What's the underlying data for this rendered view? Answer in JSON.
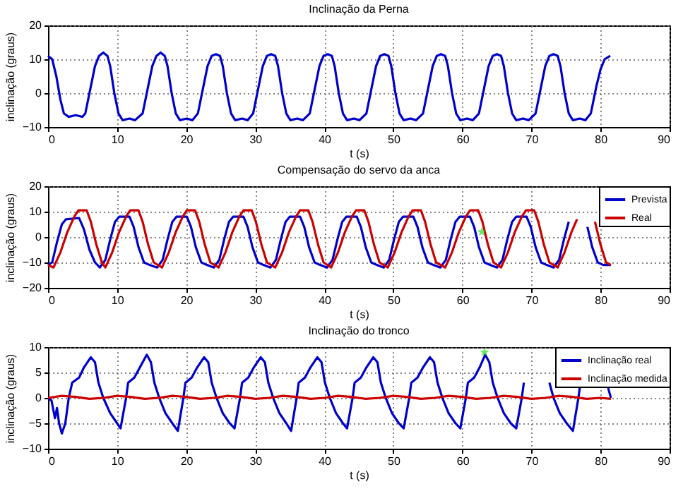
{
  "chart_data": [
    {
      "type": "line",
      "title": "Inclinação da Perna",
      "xlabel": "t (s)",
      "ylabel": "inclinação (graus)",
      "xlim": [
        0,
        90
      ],
      "ylim": [
        -10,
        20
      ],
      "xticks": [
        0,
        10,
        20,
        30,
        40,
        50,
        60,
        70,
        80,
        90
      ],
      "yticks": [
        -10,
        0,
        10,
        20
      ],
      "grid": true,
      "x": [
        0,
        0.6,
        1.2,
        1.8,
        2.3,
        3,
        4,
        5,
        5.4,
        6.2,
        6.8,
        7.4,
        8,
        8.6,
        9,
        9.6,
        10.2,
        10.8,
        11.8,
        12.6,
        13.7,
        14.5,
        15.1,
        15.7,
        16.3,
        16.9,
        17.3,
        17.9,
        18.5,
        19.1,
        20.1,
        20.9,
        21.7,
        22.5,
        23.1,
        23.7,
        24.3,
        24.9,
        25.3,
        25.9,
        26.5,
        27.1,
        28.1,
        28.9,
        29.7,
        30.5,
        31.1,
        31.7,
        32.3,
        32.9,
        33.3,
        33.9,
        34.5,
        35.1,
        36.1,
        36.9,
        37.9,
        38.7,
        39.3,
        39.9,
        40.5,
        41.1,
        41.5,
        42.1,
        42.7,
        43.3,
        44.3,
        45.1,
        46.1,
        46.9,
        47.5,
        48.1,
        48.7,
        49.3,
        49.7,
        50.3,
        50.9,
        51.5,
        52.5,
        53.3,
        54.3,
        55.1,
        55.7,
        56.3,
        56.9,
        57.5,
        57.9,
        58.5,
        59.1,
        59.7,
        60.7,
        61.5,
        62.4,
        63.2,
        63.8,
        64.4,
        65,
        65.6,
        66,
        66.6,
        67.2,
        67.8,
        68.8,
        69.6,
        70.6,
        71.4,
        72,
        72.6,
        73.2,
        73.8,
        74.2,
        74.8,
        75.4,
        76,
        77,
        77.8,
        78.6,
        79.4,
        80,
        80.6,
        81.4
      ],
      "series": [
        {
          "color": "#0000cc",
          "values": [
            11,
            10,
            5,
            -2,
            -6,
            -7,
            -6.5,
            -7,
            -6,
            2,
            8,
            11,
            12,
            11,
            8,
            0,
            -6,
            -8,
            -7.5,
            -8,
            -6,
            2,
            8,
            11,
            12,
            11,
            8,
            0,
            -6,
            -8,
            -7.5,
            -8,
            -6,
            2,
            8,
            11,
            11.5,
            11,
            8,
            0,
            -6,
            -8,
            -7.5,
            -8,
            -6,
            2,
            8,
            11,
            11.5,
            11,
            8,
            0,
            -6,
            -8,
            -7.5,
            -8,
            -6,
            2,
            8,
            11,
            11.5,
            11,
            8,
            0,
            -6,
            -8,
            -7.5,
            -8,
            -6,
            2,
            8,
            11,
            11.5,
            11,
            8,
            0,
            -6,
            -8,
            -7.5,
            -8,
            -6,
            2,
            8,
            11,
            11.5,
            11,
            8,
            0,
            -6,
            -8,
            -7.5,
            -8,
            -6,
            2,
            8,
            11,
            11.5,
            11,
            8,
            0,
            -6,
            -8,
            -7.5,
            -8,
            -6,
            2,
            8,
            11,
            11.5,
            11,
            8,
            0,
            -6,
            -8,
            -7.5,
            -8,
            -6,
            2,
            7,
            10,
            11
          ]
        }
      ]
    },
    {
      "type": "line",
      "title": "Compensação do servo da anca",
      "xlabel": "t (s)",
      "ylabel": "inclinação (graus)",
      "xlim": [
        0,
        90
      ],
      "ylim": [
        -20,
        20
      ],
      "xticks": [
        0,
        10,
        20,
        30,
        40,
        50,
        60,
        70,
        80,
        90
      ],
      "yticks": [
        -20,
        -10,
        0,
        10,
        20
      ],
      "grid": true,
      "legend": "top right",
      "series": [
        {
          "name": "Prevista",
          "color": "#0000cc",
          "x": [
            0,
            0.6,
            1.3,
            2,
            2.6,
            4.5,
            5.2,
            6,
            6.8,
            7.5,
            8.3,
            9,
            9.7,
            10.3,
            11.8,
            12.4,
            13.1,
            13.9,
            14.7,
            15.8,
            16.6,
            17.3,
            18,
            18.6,
            20.1,
            20.7,
            21.4,
            22.2,
            23,
            24,
            24.8,
            25.5,
            26.2,
            26.8,
            28.3,
            28.9,
            29.6,
            30.4,
            31.2,
            32.2,
            33,
            33.7,
            34.4,
            35,
            36.5,
            37.1,
            37.8,
            38.6,
            39.4,
            40.4,
            41.2,
            41.9,
            42.6,
            43.2,
            44.7,
            45.3,
            46,
            46.8,
            47.6,
            48.6,
            49.4,
            50.1,
            50.8,
            51.4,
            52.9,
            53.5,
            54.2,
            55,
            55.8,
            56.8,
            57.6,
            58.3,
            59,
            59.6,
            61.1,
            61.7,
            62.4,
            63.2,
            64,
            65,
            65.8,
            66.5,
            67.2,
            67.8,
            69.3,
            69.9,
            70.6,
            71.4,
            72.2,
            73.2,
            74,
            74.7,
            75.4,
            75.9,
            78.1,
            78.8,
            79.6,
            80.4,
            81.5
          ],
          "values": [
            -11,
            -10,
            -2,
            5,
            7,
            7.5,
            3,
            -5,
            -10,
            -12,
            -9,
            -1,
            6,
            8,
            8,
            4,
            -4,
            -10,
            -11,
            -12,
            -9,
            -1,
            6,
            8,
            8,
            4,
            -4,
            -10,
            -11,
            -12,
            -9,
            -1,
            6,
            8,
            8,
            4,
            -4,
            -10,
            -11,
            -12,
            -9,
            -1,
            6,
            8,
            8,
            4,
            -4,
            -10,
            -11,
            -12,
            -9,
            -1,
            6,
            8,
            8,
            4,
            -4,
            -10,
            -11,
            -12,
            -9,
            -1,
            6,
            8,
            8,
            4,
            -4,
            -10,
            -11,
            -12,
            -9,
            -1,
            6,
            8,
            8,
            4,
            -4,
            -10,
            -11,
            -12,
            -9,
            -1,
            6,
            8,
            8,
            4,
            -4,
            -10,
            -11,
            -12,
            -9,
            -1,
            6,
            null,
            4,
            -4,
            -10,
            -11,
            -11
          ]
        },
        {
          "name": "Real",
          "color": "#cc0000",
          "x": [
            0,
            0.8,
            1.8,
            2.8,
            3.8,
            4.4,
            5.6,
            6.2,
            7,
            7.8,
            8.3,
            9.3,
            10.3,
            11.3,
            11.9,
            13.1,
            13.7,
            14.5,
            15.3,
            16.5,
            17.5,
            18.5,
            19.5,
            20.1,
            21.3,
            21.9,
            22.7,
            23.5,
            24.7,
            25.7,
            26.7,
            27.7,
            28.3,
            29.5,
            30.1,
            30.9,
            31.7,
            32.9,
            33.9,
            34.9,
            35.9,
            36.5,
            37.7,
            38.3,
            39.1,
            39.9,
            41,
            42,
            43,
            44,
            44.6,
            45.8,
            46.4,
            47.2,
            48,
            49.2,
            50.2,
            51.2,
            52.2,
            52.8,
            54,
            54.6,
            55.4,
            56.2,
            57.5,
            58.5,
            59.5,
            60.5,
            61.1,
            62.3,
            62.9,
            63.7,
            64.5,
            65.6,
            66.6,
            67.6,
            68.6,
            69.2,
            70.4,
            71,
            71.8,
            72.6,
            73.8,
            74.8,
            75.8,
            76.6,
            77.2,
            79.2,
            80,
            80.8,
            81.5
          ],
          "values": [
            -11,
            -12,
            -6,
            2,
            8,
            10.5,
            10.5,
            6,
            -3,
            -10,
            -12,
            -6,
            2,
            8,
            10.5,
            10.5,
            6,
            -3,
            -10,
            -12,
            -6,
            2,
            8,
            10.5,
            10.5,
            6,
            -3,
            -10,
            -12,
            -6,
            2,
            8,
            10.5,
            10.5,
            6,
            -3,
            -10,
            -12,
            -6,
            2,
            8,
            10.5,
            10.5,
            6,
            -3,
            -10,
            -12,
            -6,
            2,
            8,
            10.5,
            10.5,
            6,
            -3,
            -10,
            -12,
            -6,
            2,
            8,
            10.5,
            10.5,
            6,
            -3,
            -10,
            -12,
            -6,
            2,
            8,
            10.5,
            10.5,
            6,
            -3,
            -10,
            -12,
            -6,
            2,
            8,
            10.5,
            10.5,
            6,
            -3,
            -10,
            -12,
            -6,
            2,
            7,
            null,
            6,
            -3,
            -10,
            -11
          ]
        },
        {
          "type": "scatter",
          "color": "#22dd22",
          "marker": "star",
          "x": [
            62.8
          ],
          "values": [
            2
          ]
        }
      ]
    },
    {
      "type": "line",
      "title": "Inclinação do tronco",
      "xlabel": "t (s)",
      "ylabel": "inclinação (graus)",
      "xlim": [
        0,
        90
      ],
      "ylim": [
        -10,
        10
      ],
      "xticks": [
        0,
        10,
        20,
        30,
        40,
        50,
        60,
        70,
        80,
        90
      ],
      "yticks": [
        -10,
        -5,
        0,
        5,
        10
      ],
      "grid": true,
      "legend": "top right",
      "series": [
        {
          "name": "Inclinação real",
          "color": "#0000cc",
          "x": [
            0,
            0.5,
            1,
            1.3,
            1.6,
            2,
            2.5,
            3,
            3.5,
            4.5,
            5.2,
            6.2,
            6.8,
            7.3,
            8,
            9,
            10,
            10.5,
            11.3,
            11.6,
            12.5,
            13.3,
            14.3,
            14.9,
            15.4,
            16.1,
            17,
            18,
            18.8,
            19.6,
            19.9,
            20.8,
            21.6,
            22.6,
            23.2,
            23.7,
            24.4,
            25.3,
            26.3,
            27,
            27.8,
            28.1,
            29,
            29.8,
            30.8,
            31.4,
            31.9,
            32.6,
            33.5,
            34.5,
            35.2,
            36,
            36.3,
            37.2,
            38,
            39,
            39.6,
            40.1,
            40.8,
            41.7,
            42.7,
            43.3,
            44.1,
            44.4,
            45.3,
            46.1,
            47.1,
            47.7,
            48.2,
            48.9,
            49.8,
            50.8,
            51.5,
            52.3,
            52.6,
            53.5,
            54.3,
            55.3,
            55.9,
            56.4,
            57.1,
            58,
            59,
            59.7,
            60.5,
            60.8,
            61.7,
            62.5,
            63.3,
            63.9,
            64.4,
            65.1,
            66,
            67,
            67.8,
            68.6,
            68.9,
            69.5,
            72.6,
            73.2,
            74.1,
            75.1,
            76,
            76.8,
            77.1,
            77.6,
            81.1,
            81.5
          ],
          "values": [
            0,
            -0.5,
            -4,
            -2,
            -5,
            -7,
            -5,
            0,
            3,
            4,
            6,
            8,
            7,
            3,
            0,
            -3,
            -5,
            -6,
            0,
            3,
            4,
            6,
            8.5,
            7,
            3,
            0,
            -3,
            -5,
            -6.5,
            0,
            3,
            4,
            6,
            8,
            7,
            3,
            0,
            -3,
            -5,
            -6,
            0,
            3,
            4,
            6,
            8,
            7,
            3,
            0,
            -3,
            -5,
            -6.5,
            0,
            3,
            4,
            6,
            8,
            7,
            3,
            0,
            -3,
            -5,
            -6,
            0,
            3,
            4,
            6,
            8,
            7,
            3,
            0,
            -3,
            -5,
            -6,
            0,
            3,
            4,
            6,
            8,
            7,
            3,
            0,
            -3,
            -5,
            -6,
            0,
            3,
            4,
            6,
            8.5,
            7,
            3,
            0,
            -3,
            -5,
            -6,
            0,
            3,
            null,
            3,
            0,
            -3,
            -5,
            -6.5,
            0,
            3,
            null,
            2,
            0
          ]
        },
        {
          "name": "Inclinação medida",
          "color": "#cc0000",
          "x": [
            0,
            2,
            4,
            6,
            8,
            10,
            12,
            14,
            16,
            18,
            20,
            22,
            24,
            26,
            28,
            30,
            32,
            34,
            36,
            38,
            40,
            42,
            44,
            46,
            48,
            50,
            52,
            54,
            56,
            58,
            60,
            62,
            64,
            66,
            68,
            70,
            72,
            74,
            76,
            78,
            80,
            81.5
          ],
          "values": [
            0,
            0.4,
            0.2,
            -0.2,
            0,
            0.4,
            0.2,
            -0.2,
            0,
            0.4,
            0.2,
            -0.2,
            0,
            0.4,
            0.2,
            -0.2,
            0,
            0.4,
            0.2,
            -0.2,
            0,
            0.4,
            0.2,
            -0.2,
            0,
            0.4,
            0.2,
            -0.2,
            0,
            0.4,
            0.2,
            -0.2,
            0,
            0.4,
            0.2,
            -0.2,
            0,
            0.4,
            0.2,
            -0.2,
            0,
            -0.2
          ]
        },
        {
          "type": "scatter",
          "color": "#22dd22",
          "marker": "star",
          "x": [
            63.2
          ],
          "values": [
            9
          ]
        }
      ]
    }
  ]
}
